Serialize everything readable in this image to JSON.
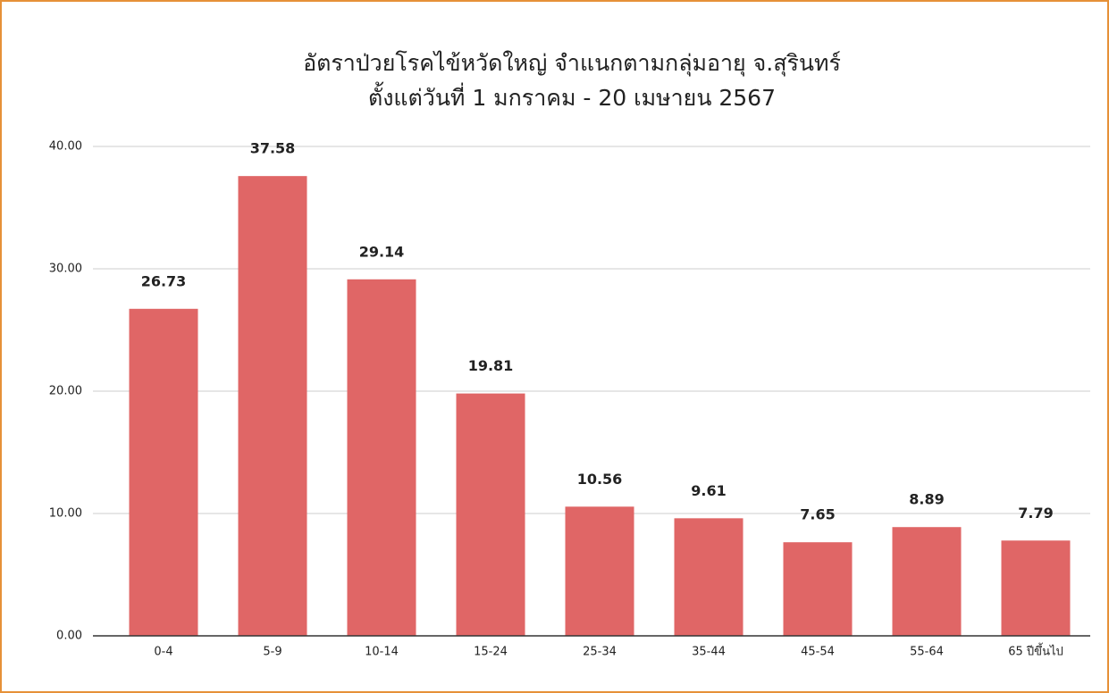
{
  "chart_data": {
    "type": "bar",
    "title": "อัตราป่วยโรคไข้หวัดใหญ่ จำแนกตามกลุ่มอายุ จ.สุรินทร์",
    "subtitle": "ตั้งแต่วันที่ 1 มกราคม - 20 เมษายน 2567",
    "categories": [
      "0-4",
      "5-9",
      "10-14",
      "15-24",
      "25-34",
      "35-44",
      "45-54",
      "55-64",
      "65 ปีขึ้นไป"
    ],
    "values": [
      26.73,
      37.58,
      29.14,
      19.81,
      10.56,
      9.61,
      7.65,
      8.89,
      7.79
    ],
    "color": "#e06666",
    "ylim": [
      0,
      40
    ],
    "yticks": [
      {
        "value": 0,
        "label": "0.00"
      },
      {
        "value": 10,
        "label": "10.00"
      },
      {
        "value": 20,
        "label": "20.00"
      },
      {
        "value": 30,
        "label": "30.00"
      },
      {
        "value": 40,
        "label": "40.00"
      }
    ],
    "grid": true
  }
}
